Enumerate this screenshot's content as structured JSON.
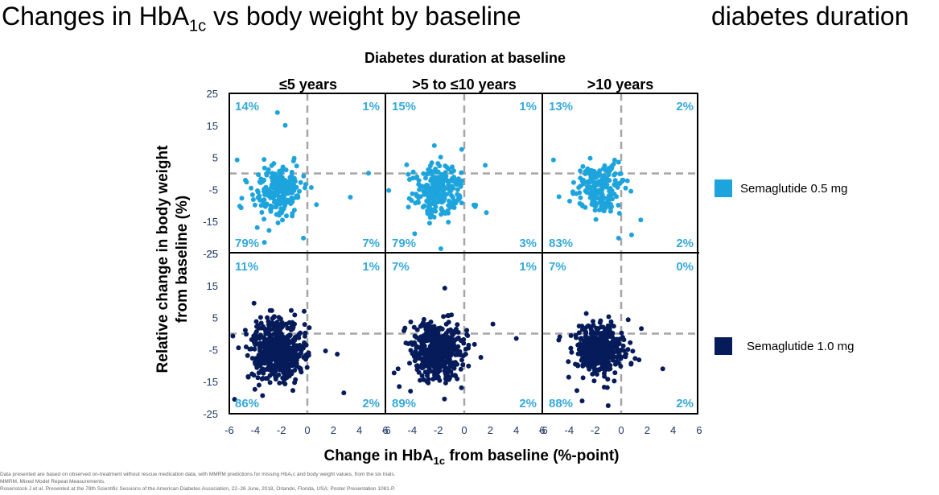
{
  "title": {
    "prefix": "Changes in HbA",
    "subscript": "1c",
    "suffix": " vs body weight by baseline",
    "right": "diabetes duration"
  },
  "chart_data": {
    "type": "scatter",
    "supertitle": "Diabetes duration at baseline",
    "column_titles": [
      "≤5 years",
      ">5 to ≤10 years",
      ">10 years"
    ],
    "xlabel": "Change in HbA1c from baseline (%-point)",
    "ylabel_lines": [
      "Relative change in body weight",
      "from baseline (%)"
    ],
    "xlim": [
      -6,
      6
    ],
    "ylim": [
      -25,
      25
    ],
    "x_ticks": [
      -6,
      -4,
      -2,
      0,
      2,
      4,
      6
    ],
    "y_ticks": [
      25,
      15,
      5,
      -5,
      -15,
      -25
    ],
    "reference_lines": {
      "x": 0,
      "y": 0
    },
    "series": [
      {
        "name": "Semaglutide 0.5 mg",
        "color": "#1ea4dc"
      },
      {
        "name": "Semaglutide 1.0 mg",
        "color": "#061b5a"
      }
    ],
    "panels": [
      {
        "row": 0,
        "col": 0,
        "series": 0,
        "n": 230,
        "center": [
          -2.2,
          -5.5
        ],
        "spread": [
          0.9,
          4.2
        ],
        "quadrants": {
          "upper_left": "14%",
          "upper_right": "1%",
          "lower_left": "79%",
          "lower_right": "7%"
        },
        "outliers": [
          [
            -2.3,
            19
          ],
          [
            -1.7,
            15
          ],
          [
            4.7,
            0.1
          ],
          [
            3.3,
            -7.4
          ],
          [
            -5.2,
            -10.2
          ],
          [
            -0.3,
            -20.2
          ],
          [
            -5.4,
            4.2
          ],
          [
            -3.3,
            -21.5
          ]
        ]
      },
      {
        "row": 0,
        "col": 1,
        "series": 0,
        "n": 230,
        "center": [
          -2.0,
          -5.5
        ],
        "spread": [
          0.95,
          4.0
        ],
        "quadrants": {
          "upper_left": "15%",
          "upper_right": "1%",
          "lower_left": "79%",
          "lower_right": "3%"
        },
        "outliers": [
          [
            -1.8,
            -23.5
          ],
          [
            -0.2,
            7.5
          ],
          [
            -5.8,
            -5.3
          ],
          [
            1.7,
            -12.2
          ],
          [
            -2.3,
            8.7
          ]
        ]
      },
      {
        "row": 0,
        "col": 2,
        "series": 0,
        "n": 200,
        "center": [
          -1.8,
          -4.8
        ],
        "spread": [
          0.85,
          3.8
        ],
        "quadrants": {
          "upper_left": "13%",
          "upper_right": "2%",
          "lower_left": "83%",
          "lower_right": "2%"
        },
        "outliers": [
          [
            1.5,
            -14.5
          ],
          [
            -0.2,
            -20.2
          ],
          [
            0.8,
            -19.2
          ],
          [
            -5.2,
            4.2
          ]
        ]
      },
      {
        "row": 1,
        "col": 0,
        "series": 1,
        "n": 520,
        "center": [
          -2.2,
          -5.5
        ],
        "spread": [
          1.0,
          4.4
        ],
        "quadrants": {
          "upper_left": "11%",
          "upper_right": "1%",
          "lower_left": "86%",
          "lower_right": "2%"
        },
        "outliers": [
          [
            -4.1,
            9.5
          ],
          [
            2.8,
            -18.5
          ],
          [
            -5.6,
            -20.5
          ],
          [
            1.4,
            -5.4
          ],
          [
            2.3,
            -6.4
          ]
        ]
      },
      {
        "row": 1,
        "col": 1,
        "series": 1,
        "n": 520,
        "center": [
          -2.0,
          -5.8
        ],
        "spread": [
          1.0,
          4.2
        ],
        "quadrants": {
          "upper_left": "7%",
          "upper_right": "1%",
          "lower_left": "89%",
          "lower_right": "2%"
        },
        "outliers": [
          [
            -1.5,
            14.2
          ],
          [
            4.0,
            -1.5
          ],
          [
            2.2,
            3.0
          ],
          [
            -5.0,
            -16.5
          ]
        ]
      },
      {
        "row": 1,
        "col": 2,
        "series": 1,
        "n": 460,
        "center": [
          -1.8,
          -5.0
        ],
        "spread": [
          0.9,
          3.8
        ],
        "quadrants": {
          "upper_left": "7%",
          "upper_right": "0%",
          "lower_left": "88%",
          "lower_right": "2%"
        },
        "outliers": [
          [
            3.2,
            -11.0
          ],
          [
            -1.0,
            -22.5
          ],
          [
            -4.8,
            -2.0
          ],
          [
            -3.0,
            -21.0
          ]
        ]
      }
    ]
  },
  "footnotes": [
    "Data presented are based on observed on-treatment without rescue medication data, with MMRM predictions for missing HbA₁c and body weight values, from the six trials.",
    "MMRM, Mixed Model Repeat Measurements.",
    "Rosenstock J et al. Presented at the 78th Scientific Sessions of the American Diabetes Association, 22–26 June, 2018, Orlando, Florida, USA; Poster Presentation 1081-P."
  ]
}
